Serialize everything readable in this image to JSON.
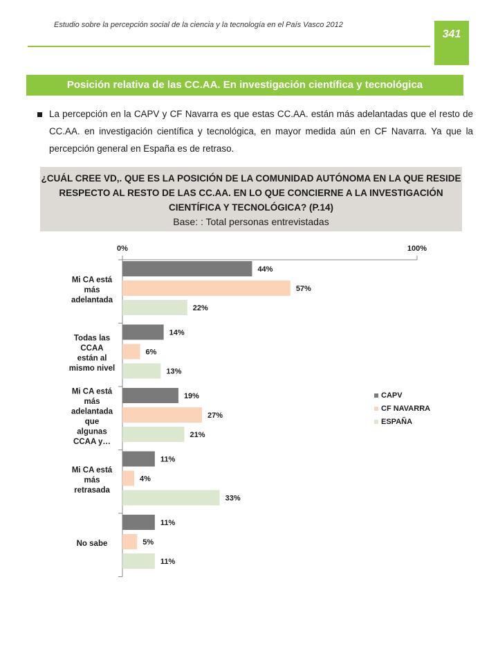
{
  "header": {
    "title": "Estudio sobre la percepción social de la ciencia y la tecnología en el País Vasco 2012",
    "page_number": "341"
  },
  "section_title": "Posición relativa de las CC.AA. En investigación  científica y tecnológica",
  "bullet_text": "La percepción en la CAPV y CF Navarra es que estas CC.AA. están más adelantadas que el resto de CC.AA. en investigación científica y tecnológica, en mayor medida aún en CF Navarra. Ya que la percepción general en España es de retraso.",
  "question": {
    "text": "¿CUÁL CREE VD,. QUE ES LA POSICIÓN DE LA COMUNIDAD AUTÓNOMA EN LA QUE RESIDE RESPECTO AL RESTO DE LAS CC.AA. EN LO QUE CONCIERNE A LA INVESTIGACIÓN CIENTÍFICA Y TECNOLÓGICA? (P.14)",
    "base": "Base: : Total personas entrevistadas"
  },
  "chart_data": {
    "type": "bar",
    "orientation": "horizontal",
    "categories": [
      "Mi CA está más adelantada",
      "Todas las CCAA están al mismo nivel",
      "Mi CA está más adelantada que algunas CCAA y…",
      "Mi CA está más retrasada",
      "No sabe"
    ],
    "category_lines": [
      [
        "Mi CA está",
        "más",
        "adelantada"
      ],
      [
        "Todas las",
        "CCAA",
        "están al",
        "mismo nivel"
      ],
      [
        "Mi CA está",
        "más",
        "adelantada",
        "que",
        "algunas",
        "CCAA y…"
      ],
      [
        "Mi CA está",
        "más",
        "retrasada"
      ],
      [
        "No sabe"
      ]
    ],
    "series": [
      {
        "name": "CAPV",
        "values": [
          44,
          14,
          19,
          11,
          11
        ],
        "color": "#7a7a7a"
      },
      {
        "name": "CF NAVARRA",
        "values": [
          57,
          6,
          27,
          4,
          5
        ],
        "color": "#fbd3b8"
      },
      {
        "name": "ESPAÑA",
        "values": [
          22,
          13,
          21,
          33,
          11
        ],
        "color": "#dce7cf"
      }
    ],
    "value_suffix": "%",
    "xlim": [
      0,
      100
    ],
    "axis_labels": {
      "min": "0%",
      "max": "100%"
    },
    "axis_position": "top",
    "legend_position": "right"
  }
}
